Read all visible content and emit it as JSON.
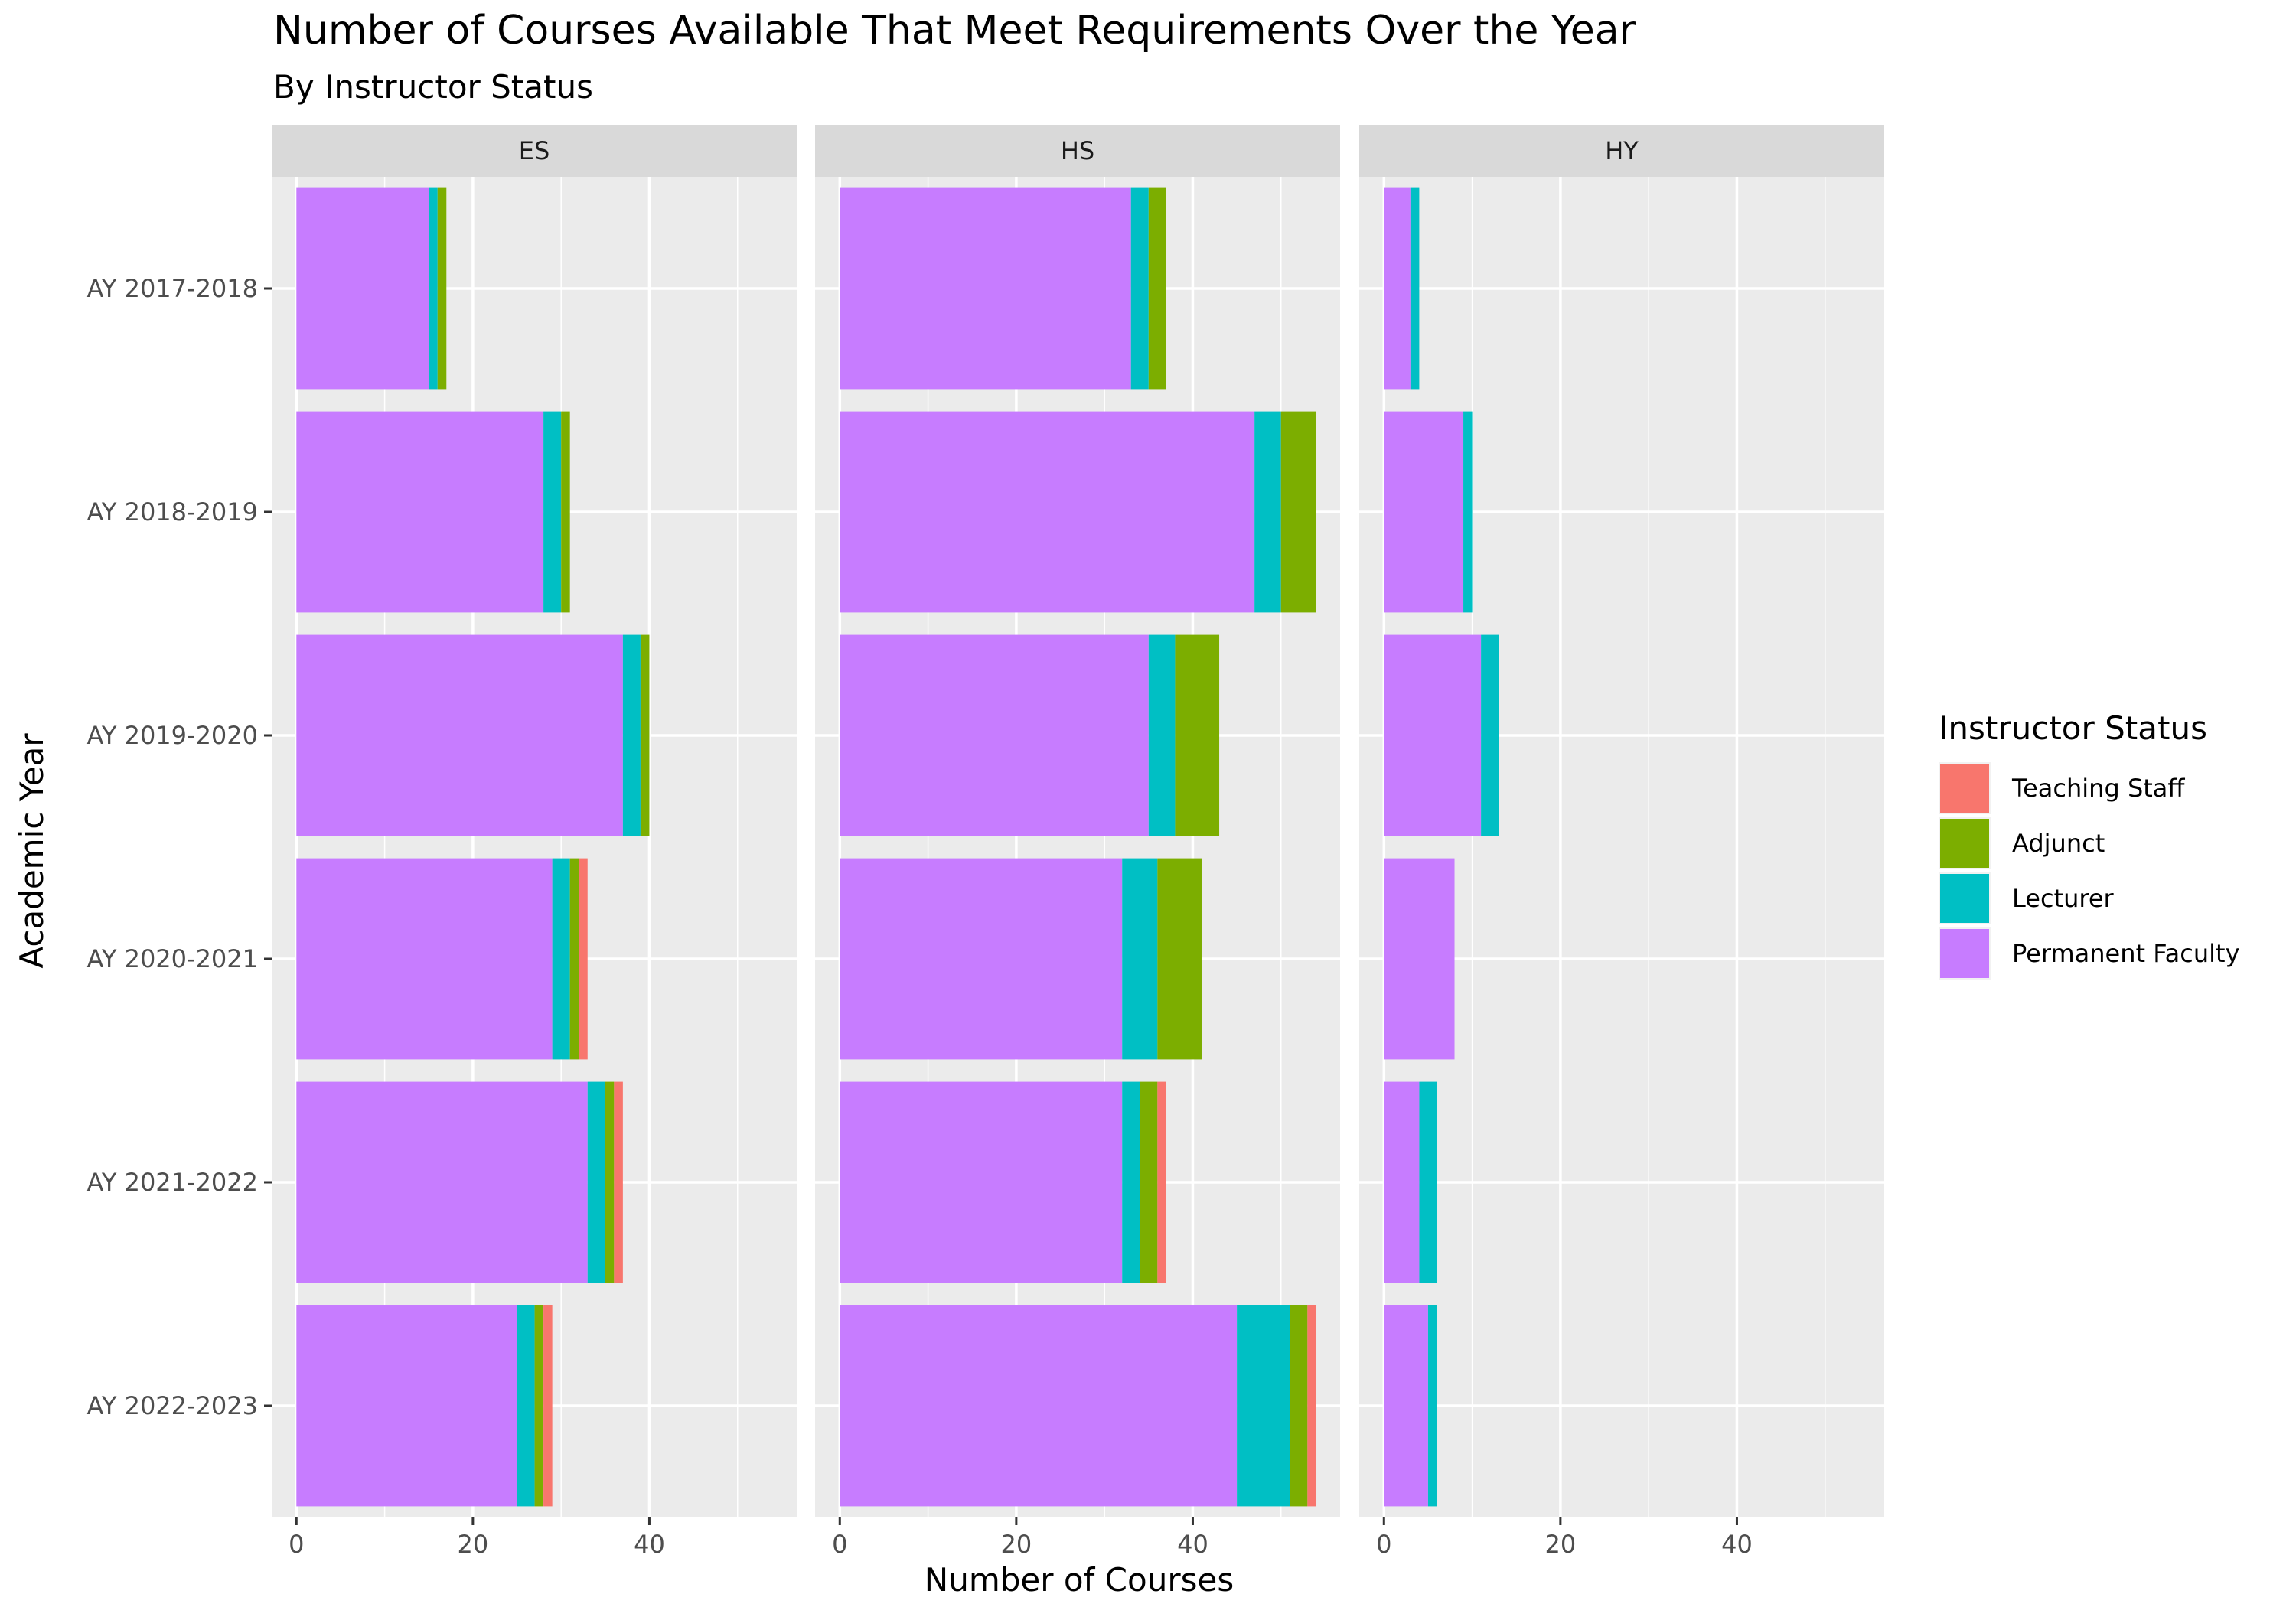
{
  "chart_data": {
    "type": "bar",
    "orientation": "horizontal",
    "stacked": true,
    "title": "Number of Courses Available That Meet Requirements Over the Year",
    "subtitle": "By Instructor Status",
    "xlabel": "Number of Courses",
    "ylabel": "Academic Year",
    "xlim": [
      -2.8,
      56.7
    ],
    "x_ticks": [
      0,
      20,
      40
    ],
    "grid": true,
    "categories": [
      "AY 2017-2018",
      "AY 2018-2019",
      "AY 2019-2020",
      "AY 2020-2021",
      "AY 2021-2022",
      "AY 2022-2023"
    ],
    "legend": {
      "title": "Instructor Status",
      "position": "right",
      "entries": [
        "Teaching Staff",
        "Adjunct",
        "Lecturer",
        "Permanent Faculty"
      ]
    },
    "colors": {
      "Teaching Staff": "#F8766D",
      "Adjunct": "#7CAE00",
      "Lecturer": "#00BFC4",
      "Permanent Faculty": "#C77CFF"
    },
    "stack_order": [
      "Permanent Faculty",
      "Lecturer",
      "Adjunct",
      "Teaching Staff"
    ],
    "panels": [
      {
        "name": "ES",
        "series": [
          {
            "name": "Permanent Faculty",
            "values": [
              15,
              28,
              37,
              29,
              33,
              25
            ]
          },
          {
            "name": "Lecturer",
            "values": [
              1,
              2,
              2,
              2,
              2,
              2
            ]
          },
          {
            "name": "Adjunct",
            "values": [
              1,
              1,
              1,
              1,
              1,
              1
            ]
          },
          {
            "name": "Teaching Staff",
            "values": [
              0,
              0,
              0,
              1,
              1,
              1
            ]
          }
        ]
      },
      {
        "name": "HS",
        "series": [
          {
            "name": "Permanent Faculty",
            "values": [
              33,
              47,
              35,
              32,
              32,
              45
            ]
          },
          {
            "name": "Lecturer",
            "values": [
              2,
              3,
              3,
              4,
              2,
              6
            ]
          },
          {
            "name": "Adjunct",
            "values": [
              2,
              4,
              5,
              5,
              2,
              2
            ]
          },
          {
            "name": "Teaching Staff",
            "values": [
              0,
              0,
              0,
              0,
              1,
              1
            ]
          }
        ]
      },
      {
        "name": "HY",
        "series": [
          {
            "name": "Permanent Faculty",
            "values": [
              3,
              9,
              11,
              8,
              4,
              5
            ]
          },
          {
            "name": "Lecturer",
            "values": [
              1,
              1,
              2,
              0,
              2,
              1
            ]
          },
          {
            "name": "Adjunct",
            "values": [
              0,
              0,
              0,
              0,
              0,
              0
            ]
          },
          {
            "name": "Teaching Staff",
            "values": [
              0,
              0,
              0,
              0,
              0,
              0
            ]
          }
        ]
      }
    ]
  }
}
